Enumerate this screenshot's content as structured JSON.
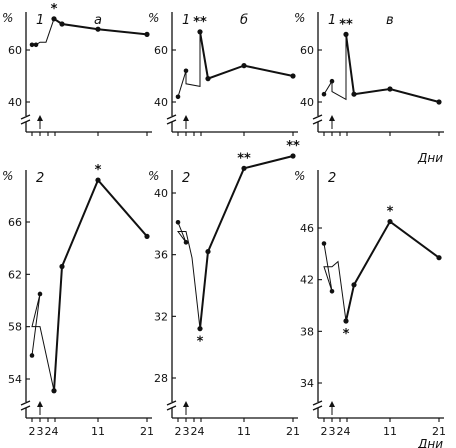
{
  "chart_data": [
    {
      "type": "line",
      "group": "1",
      "letter": "а",
      "y_unit": "%",
      "yticks": [
        40,
        60
      ],
      "ylim": [
        30,
        75
      ],
      "xticks": [],
      "main": [
        {
          "x": 4,
          "y": 72
        },
        {
          "x": 5,
          "y": 70
        },
        {
          "x": 11,
          "y": 68
        },
        {
          "x": 21,
          "y": 66
        }
      ],
      "pre": [
        {
          "x": 2,
          "y": 62
        },
        {
          "x": 2.5,
          "y": 62
        },
        {
          "x": 3,
          "y": 63
        },
        {
          "x": 3.5,
          "y": 63
        }
      ],
      "star_points": [
        {
          "x": 4,
          "marker": "*"
        }
      ],
      "arrow_day": 3
    },
    {
      "type": "line",
      "group": "1",
      "letter": "б",
      "y_unit": "%",
      "yticks": [
        40,
        60
      ],
      "ylim": [
        30,
        75
      ],
      "xticks": [],
      "main": [
        {
          "x": 4,
          "y": 67
        },
        {
          "x": 5,
          "y": 49
        },
        {
          "x": 11,
          "y": 54
        },
        {
          "x": 21,
          "y": 50
        }
      ],
      "pre": [
        {
          "x": 2,
          "y": 42
        },
        {
          "x": 3,
          "y": 52
        },
        {
          "x": 3,
          "y": 47
        },
        {
          "x": 4,
          "y": 46
        }
      ],
      "star_points": [
        {
          "x": 4,
          "marker": "**"
        }
      ],
      "arrow_day": 3
    },
    {
      "type": "line",
      "group": "1",
      "letter": "в",
      "y_unit": "%",
      "yticks": [
        40,
        60
      ],
      "ylim": [
        30,
        75
      ],
      "xticks": [],
      "xlabel": "Дни",
      "main": [
        {
          "x": 4,
          "y": 66
        },
        {
          "x": 5,
          "y": 43
        },
        {
          "x": 11,
          "y": 45
        },
        {
          "x": 21,
          "y": 40
        }
      ],
      "pre": [
        {
          "x": 2,
          "y": 43
        },
        {
          "x": 3,
          "y": 48
        },
        {
          "x": 3,
          "y": 44
        },
        {
          "x": 4,
          "y": 41
        }
      ],
      "star_points": [
        {
          "x": 4,
          "marker": "**"
        }
      ],
      "arrow_day": 3
    },
    {
      "type": "line",
      "group": "2",
      "y_unit": "%",
      "yticks": [
        54,
        58,
        62,
        66
      ],
      "ylim": [
        52,
        70
      ],
      "xticks": [
        "2",
        "3",
        "2",
        "4",
        "11",
        "21"
      ],
      "main": [
        {
          "x": 4,
          "y": 53.1
        },
        {
          "x": 5,
          "y": 62.6
        },
        {
          "x": 11,
          "y": 69.2
        },
        {
          "x": 21,
          "y": 64.9
        }
      ],
      "pre": [
        {
          "x": 2,
          "y": 55.8
        },
        {
          "x": 3,
          "y": 60.5
        },
        {
          "x": 2,
          "y": 58
        },
        {
          "x": 3,
          "y": 58
        }
      ],
      "star_points": [
        {
          "x": 11,
          "marker": "*"
        }
      ],
      "arrow_day": 3
    },
    {
      "type": "line",
      "group": "2",
      "y_unit": "%",
      "yticks": [
        28,
        32,
        36,
        40
      ],
      "ylim": [
        26,
        44
      ],
      "xticks": [
        "2",
        "3",
        "2",
        "4",
        "11",
        "21"
      ],
      "main": [
        {
          "x": 4,
          "y": 31.2
        },
        {
          "x": 5,
          "y": 36.2
        },
        {
          "x": 11,
          "y": 41.6
        },
        {
          "x": 21,
          "y": 42.4
        }
      ],
      "pre": [
        {
          "x": 2,
          "y": 38.1
        },
        {
          "x": 3,
          "y": 36.8
        },
        {
          "x": 2,
          "y": 37.5
        },
        {
          "x": 3,
          "y": 37.5
        },
        {
          "x": 3.5,
          "y": 35.8
        }
      ],
      "star_points": [
        {
          "x": 4,
          "marker": "*"
        },
        {
          "x": 11,
          "marker": "**"
        },
        {
          "x": 21,
          "marker": "**"
        }
      ],
      "arrow_day": 3
    },
    {
      "type": "line",
      "group": "2",
      "y_unit": "%",
      "yticks": [
        34,
        38,
        42,
        46
      ],
      "ylim": [
        32,
        50
      ],
      "xticks": [
        "2",
        "3",
        "2",
        "4",
        "11",
        "21"
      ],
      "xlabel": "Дни",
      "main": [
        {
          "x": 4,
          "y": 38.8
        },
        {
          "x": 5,
          "y": 41.6
        },
        {
          "x": 11,
          "y": 46.5
        },
        {
          "x": 21,
          "y": 43.7
        }
      ],
      "pre": [
        {
          "x": 2,
          "y": 44.8
        },
        {
          "x": 3,
          "y": 41.1
        },
        {
          "x": 2,
          "y": 43
        },
        {
          "x": 3,
          "y": 43
        },
        {
          "x": 3.5,
          "y": 43.4
        }
      ],
      "star_points": [
        {
          "x": 4,
          "marker": "*"
        },
        {
          "x": 11,
          "marker": "*"
        }
      ],
      "arrow_day": 3
    }
  ]
}
